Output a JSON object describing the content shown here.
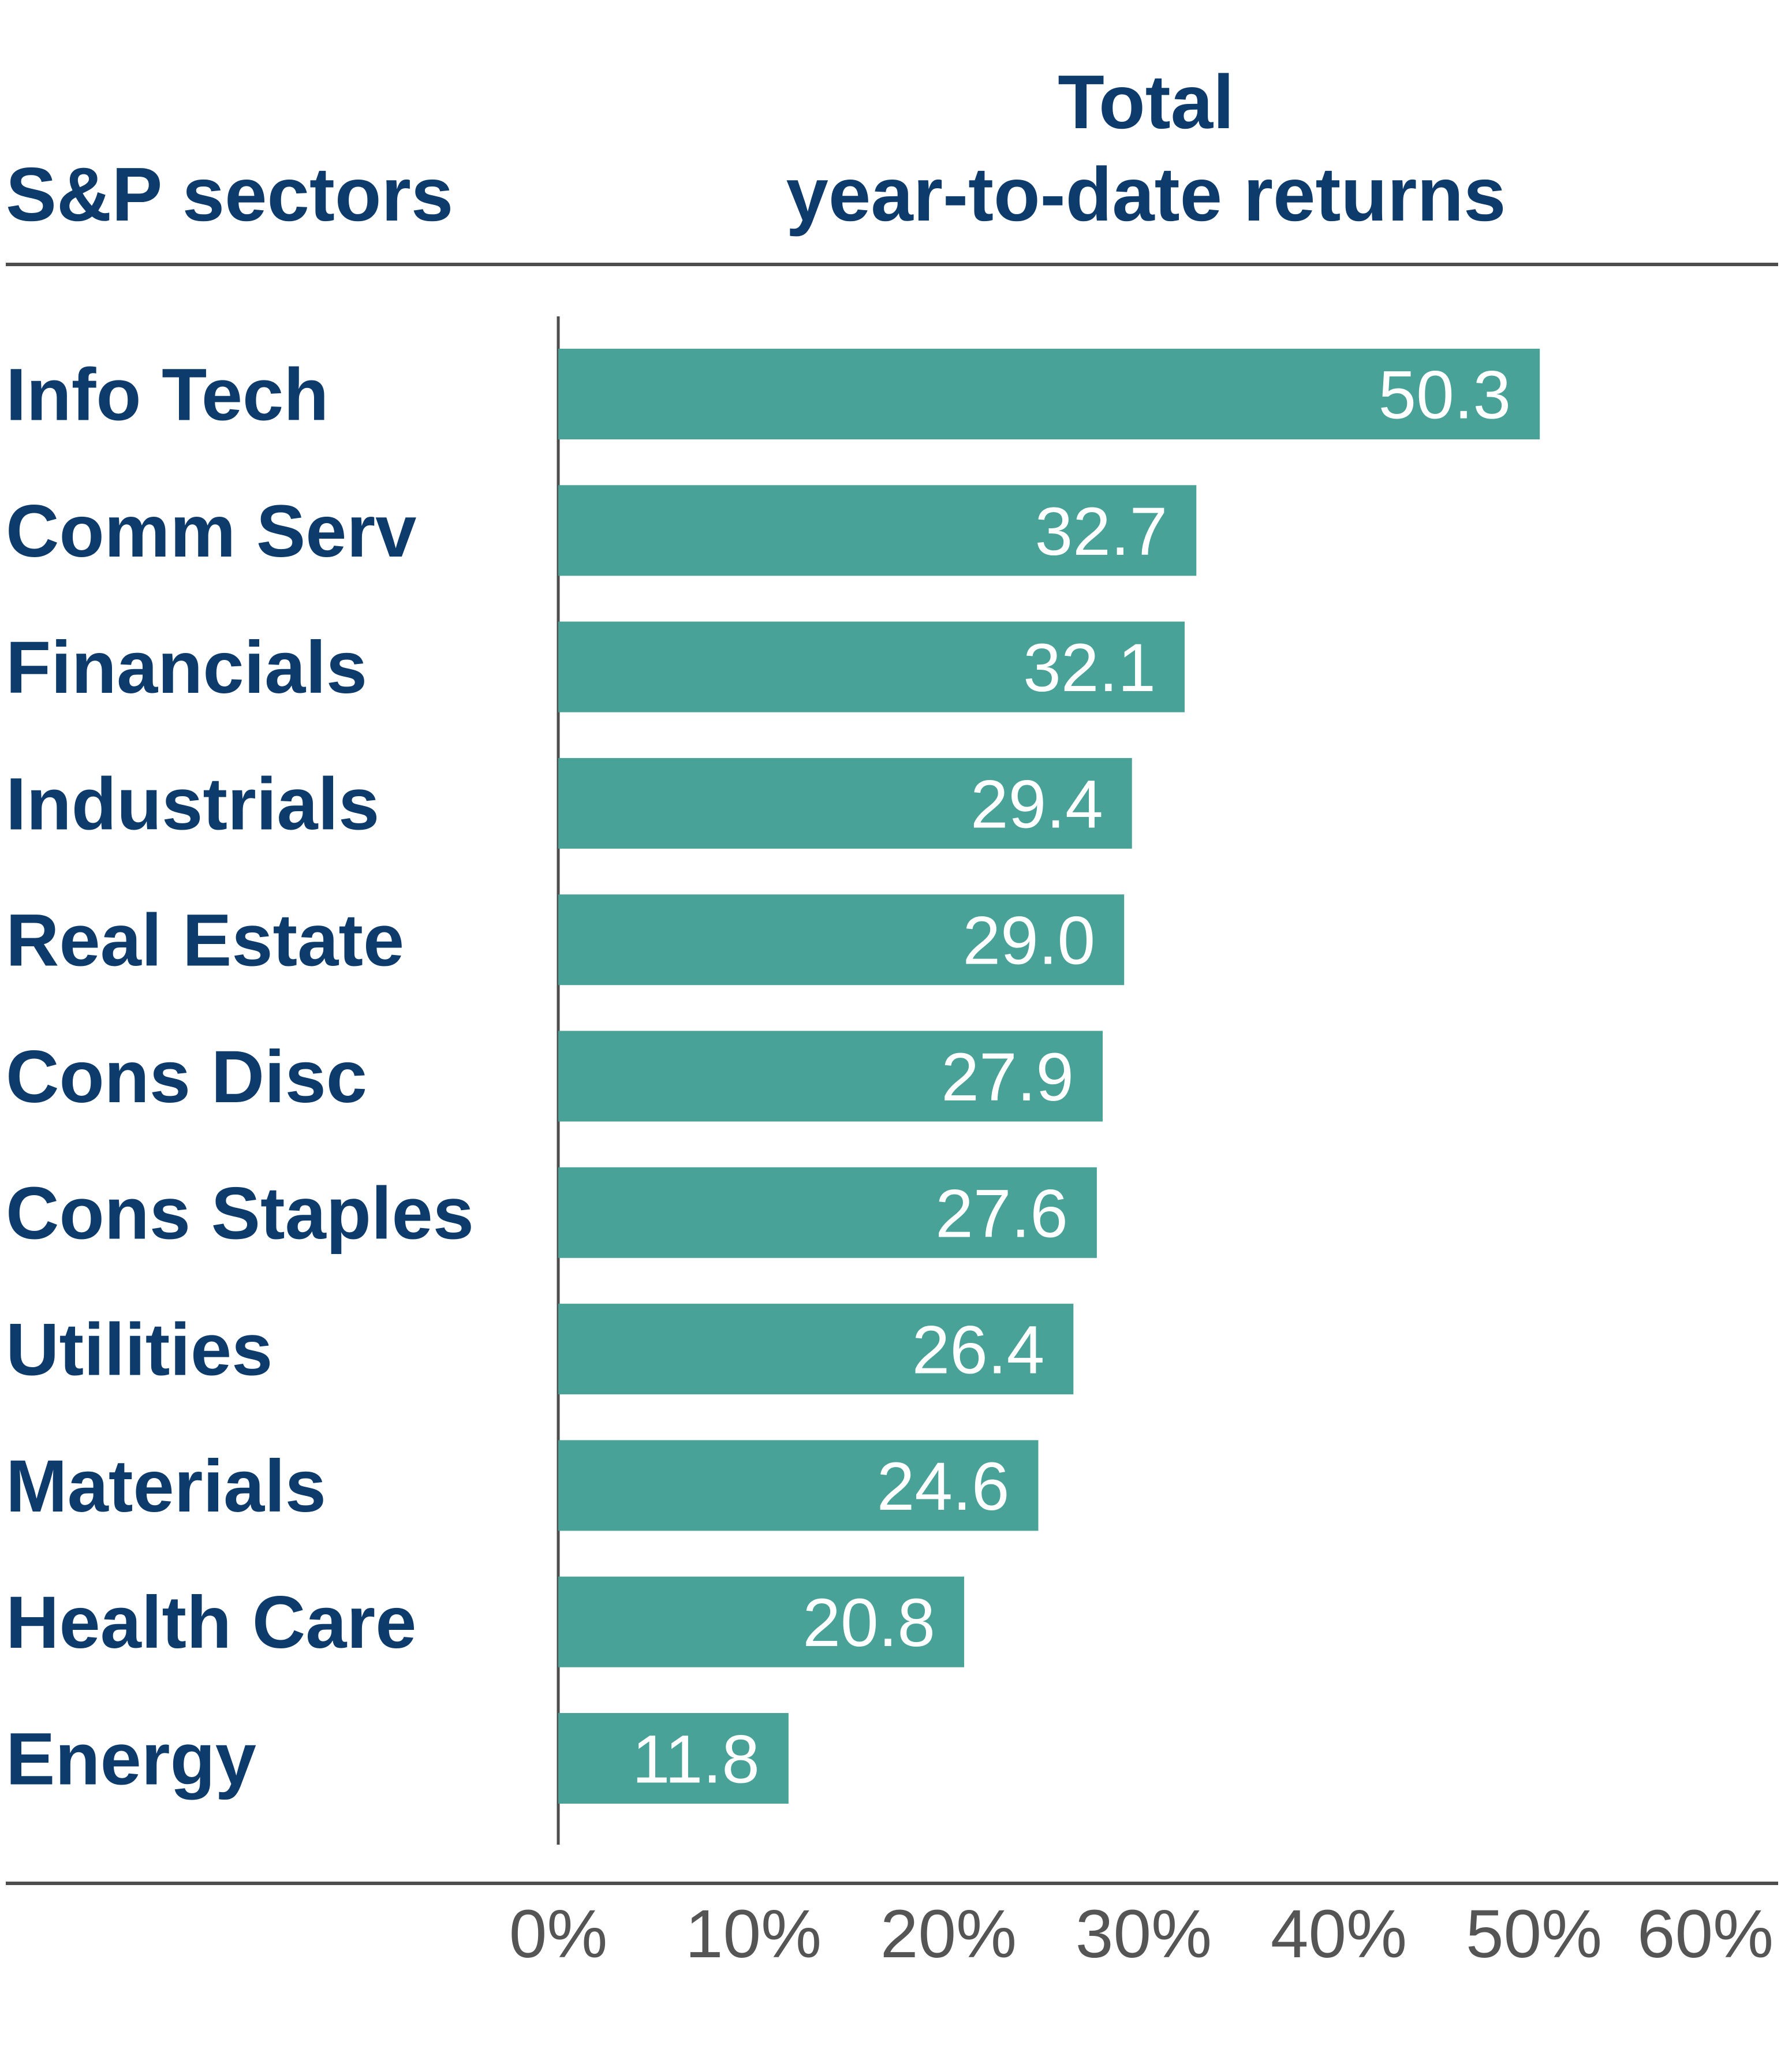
{
  "chart_data": {
    "type": "bar",
    "orientation": "horizontal",
    "header_left": "S&P sectors",
    "header_right_line1": "Total",
    "header_right_line2": "year-to-date returns",
    "categories": [
      "Info Tech",
      "Comm Serv",
      "Financials",
      "Industrials",
      "Real Estate",
      "Cons Disc",
      "Cons Staples",
      "Utilities",
      "Materials",
      "Health Care",
      "Energy"
    ],
    "values": [
      50.3,
      32.7,
      32.1,
      29.4,
      29.0,
      27.9,
      27.6,
      26.4,
      24.6,
      20.8,
      11.8
    ],
    "value_labels": [
      "50.3",
      "32.7",
      "32.1",
      "29.4",
      "29.0",
      "27.9",
      "27.6",
      "26.4",
      "24.6",
      "20.8",
      "11.8"
    ],
    "x_ticks": [
      "0%",
      "10%",
      "20%",
      "30%",
      "40%",
      "50%",
      "60%"
    ],
    "xlim": [
      0,
      60
    ],
    "xlabel": "",
    "ylabel": "",
    "grid": false,
    "legend": "none"
  },
  "colors": {
    "bar": "#48a298",
    "heading": "#0d3b6b",
    "value_text": "#ffffff",
    "tick_text": "#555555",
    "rule": "#4d4d4d"
  }
}
